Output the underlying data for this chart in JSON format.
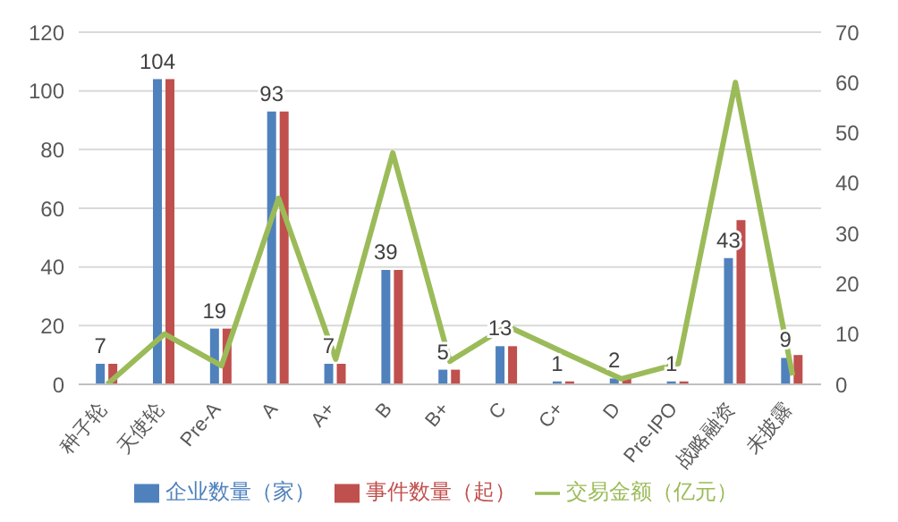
{
  "chart_data": {
    "type": "bar",
    "categories": [
      "种子轮",
      "天使轮",
      "Pre-A",
      "A",
      "A+",
      "B",
      "B+",
      "C",
      "C+",
      "D",
      "Pre-IPO",
      "战略融资",
      "未披露"
    ],
    "series": [
      {
        "name": "企业数量（家）",
        "color": "#4f81bd",
        "values": [
          7,
          104,
          19,
          93,
          7,
          39,
          5,
          13,
          1,
          2,
          1,
          43,
          9
        ],
        "value_labels": [
          "7",
          "104",
          "19",
          "93",
          "7",
          "39",
          "5",
          "13",
          "1",
          "2",
          "1",
          "43",
          "9"
        ]
      },
      {
        "name": "事件数量（起）",
        "color": "#c0504d",
        "values": [
          7,
          104,
          19,
          93,
          7,
          39,
          5,
          13,
          1,
          2,
          1,
          56,
          10
        ]
      },
      {
        "name": "交易金额（亿元）",
        "color": "#9bbb59",
        "type": "line",
        "axis": "y2",
        "values": [
          0,
          10,
          3.7,
          37,
          5,
          46,
          4.6,
          11.6,
          6.3,
          1.1,
          4.1,
          60,
          1.8
        ]
      }
    ],
    "ylim": [
      0,
      120
    ],
    "yticks": [
      0,
      20,
      40,
      60,
      80,
      100,
      120
    ],
    "y2lim": [
      0,
      70
    ],
    "y2ticks": [
      0,
      10,
      20,
      30,
      40,
      50,
      60,
      70
    ],
    "grid": "y",
    "legend": "bottom",
    "marker": "none"
  }
}
